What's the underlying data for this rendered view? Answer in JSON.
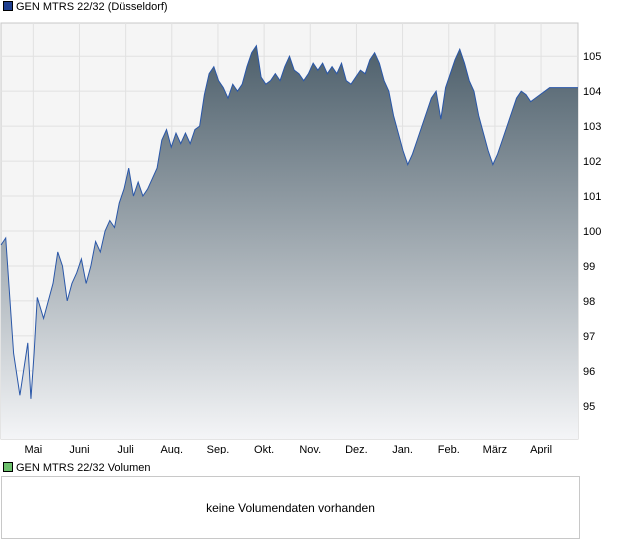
{
  "price_legend": {
    "label": "GEN MTRS 22/32 (Düsseldorf)",
    "color": "#1f3f8f"
  },
  "volume_legend": {
    "label": "GEN MTRS 22/32 Volumen",
    "color": "#6cc06c"
  },
  "volume_panel": {
    "message": "keine Volumendaten vorhanden"
  },
  "chart_data": {
    "type": "area",
    "title": "GEN MTRS 22/32 (Düsseldorf)",
    "xlabel": "",
    "ylabel": "",
    "x_ticks": [
      "Mai",
      "Juni",
      "Juli",
      "Aug.",
      "Sep.",
      "Okt.",
      "Nov.",
      "Dez.",
      "Jan.",
      "Feb.",
      "März",
      "April"
    ],
    "y_ticks": [
      95,
      96,
      97,
      98,
      99,
      100,
      101,
      102,
      103,
      104,
      105
    ],
    "ylim": [
      94.05,
      105.95
    ],
    "grid": true,
    "line_color": "#2a57a8",
    "fill_top_color": "#4d5f6b",
    "fill_bottom_color": "#f4f5f7",
    "series": [
      {
        "name": "GEN MTRS 22/32 (Düsseldorf)",
        "x": [
          0,
          3,
          8,
          12,
          17,
          19,
          21,
          23,
          27,
          30,
          33,
          36,
          39,
          42,
          45,
          48,
          51,
          54,
          57,
          60,
          63,
          66,
          69,
          72,
          75,
          78,
          81,
          84,
          87,
          90,
          93,
          96,
          99,
          102,
          105,
          108,
          111,
          114,
          117,
          120,
          123,
          126,
          129,
          132,
          135,
          138,
          141,
          144,
          147,
          150,
          153,
          156,
          159,
          162,
          165,
          168,
          171,
          174,
          177,
          180,
          183,
          186,
          189,
          192,
          195,
          198,
          201,
          204,
          207,
          210,
          213,
          216,
          219,
          222,
          225,
          228,
          231,
          234,
          237,
          240,
          243,
          246,
          249,
          252,
          255,
          258,
          261,
          264,
          267,
          270,
          273,
          276,
          279,
          282,
          285,
          288,
          291,
          294,
          297,
          300,
          303,
          306,
          309,
          312,
          315,
          318,
          321,
          324,
          327,
          330,
          333,
          336,
          339,
          342,
          345,
          348,
          351,
          354,
          357,
          360,
          363,
          366
        ],
        "values": [
          99.6,
          99.8,
          96.5,
          95.3,
          96.8,
          95.2,
          96.5,
          98.1,
          97.5,
          98.0,
          98.5,
          99.4,
          99.0,
          98.0,
          98.5,
          98.8,
          99.2,
          98.5,
          99.0,
          99.7,
          99.4,
          100.0,
          100.3,
          100.1,
          100.8,
          101.2,
          101.8,
          101.0,
          101.4,
          101.0,
          101.2,
          101.5,
          101.8,
          102.6,
          102.9,
          102.4,
          102.8,
          102.5,
          102.8,
          102.5,
          102.9,
          103.0,
          103.9,
          104.5,
          104.7,
          104.3,
          104.1,
          103.8,
          104.2,
          104.0,
          104.2,
          104.7,
          105.1,
          105.3,
          104.4,
          104.2,
          104.3,
          104.5,
          104.3,
          104.7,
          105.0,
          104.6,
          104.5,
          104.3,
          104.5,
          104.8,
          104.6,
          104.8,
          104.5,
          104.7,
          104.5,
          104.8,
          104.3,
          104.2,
          104.4,
          104.6,
          104.5,
          104.9,
          105.1,
          104.8,
          104.3,
          104.0,
          103.3,
          102.8,
          102.3,
          101.9,
          102.2,
          102.6,
          103.0,
          103.4,
          103.8,
          104.0,
          103.2,
          104.1,
          104.5,
          104.9,
          105.2,
          104.8,
          104.3,
          104.0,
          103.3,
          102.8,
          102.3,
          101.9,
          102.2,
          102.6,
          103.0,
          103.4,
          103.8,
          104.0,
          103.9,
          103.7,
          103.8,
          103.9,
          104.0,
          104.1,
          104.1,
          104.1,
          104.1,
          104.1,
          104.1,
          104.1
        ]
      }
    ]
  }
}
